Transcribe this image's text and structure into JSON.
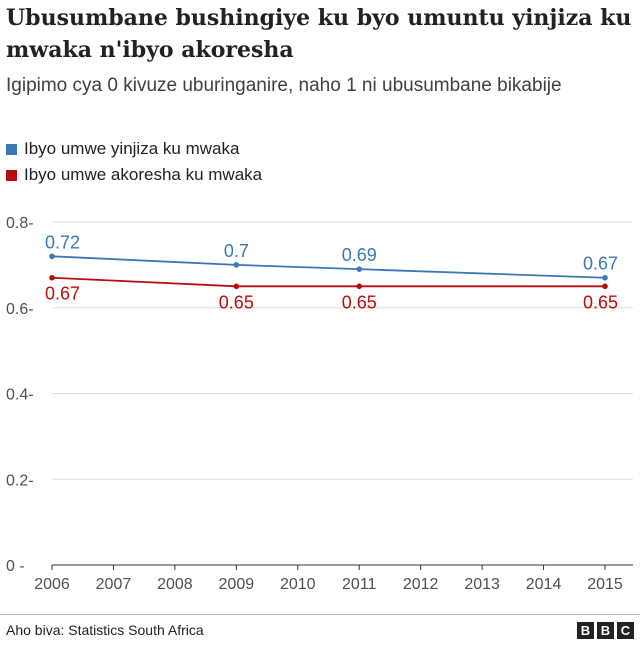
{
  "chart_data": {
    "type": "line",
    "title": "Ubusumbane bushingiye ku byo umuntu yinjiza ku mwaka n'ibyo akoresha",
    "subtitle": "Igipimo cya 0 kivuze uburinganire, naho 1 ni ubusumbane bikabije",
    "x": [
      2006,
      2009,
      2011,
      2015
    ],
    "x_ticks": [
      "2006",
      "2007",
      "2008",
      "2009",
      "2010",
      "2011",
      "2012",
      "2013",
      "2014",
      "2015"
    ],
    "y_ticks": [
      "0.8",
      "0.6",
      "0.4",
      "0.2",
      "0"
    ],
    "ylim": [
      0,
      0.8
    ],
    "xlim": [
      2006,
      2015
    ],
    "grid": true,
    "legend_position": "top-left",
    "series": [
      {
        "name": "Ibyo umwe yinjiza ku mwaka",
        "color": "#3a77b4",
        "values": [
          0.72,
          0.7,
          0.69,
          0.67
        ],
        "labels": [
          "0.72",
          "0.7",
          "0.69",
          "0.67"
        ]
      },
      {
        "name": "Ibyo umwe akoresha ku mwaka",
        "color": "#b80d0d",
        "values": [
          0.67,
          0.65,
          0.65,
          0.65
        ],
        "labels": [
          "0.67",
          "0.65",
          "0.65",
          "0.65"
        ]
      }
    ]
  },
  "footer": {
    "source": "Aho biva: Statistics South Africa"
  },
  "logo": {
    "letters": [
      "B",
      "B",
      "C"
    ]
  }
}
